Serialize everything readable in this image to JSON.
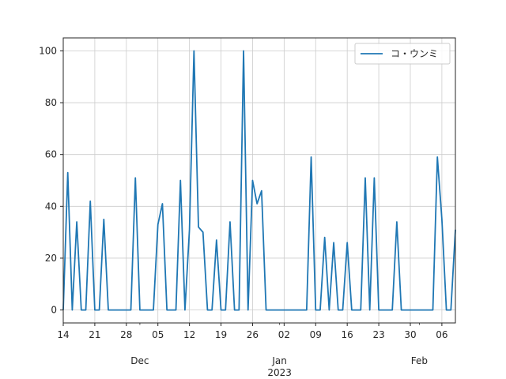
{
  "chart_data": {
    "type": "line",
    "title": "",
    "xlabel": "",
    "ylabel": "",
    "x_start": "2022-11-14",
    "x_end": "2023-02-09",
    "ylim": [
      -5,
      105
    ],
    "y_ticks": [
      0,
      20,
      40,
      60,
      80,
      100
    ],
    "grid": true,
    "legend_position": "top-right",
    "x_day_ticks": [
      {
        "date": "2022-11-14",
        "label": "14"
      },
      {
        "date": "2022-11-21",
        "label": "21"
      },
      {
        "date": "2022-11-28",
        "label": "28"
      },
      {
        "date": "2022-12-05",
        "label": "05"
      },
      {
        "date": "2022-12-12",
        "label": "12"
      },
      {
        "date": "2022-12-19",
        "label": "19"
      },
      {
        "date": "2022-12-26",
        "label": "26"
      },
      {
        "date": "2023-01-02",
        "label": "02"
      },
      {
        "date": "2023-01-09",
        "label": "09"
      },
      {
        "date": "2023-01-16",
        "label": "16"
      },
      {
        "date": "2023-01-23",
        "label": "23"
      },
      {
        "date": "2023-01-30",
        "label": "30"
      },
      {
        "date": "2023-02-06",
        "label": "06"
      }
    ],
    "x_month_ticks": [
      {
        "date": "2022-12-01",
        "label": "Dec"
      },
      {
        "date": "2023-01-01",
        "label": "Jan\n2023"
      },
      {
        "date": "2023-02-01",
        "label": "Feb"
      }
    ],
    "series": [
      {
        "name": "コ・ウンミ",
        "color": "#1f77b4",
        "x": [
          "2022-11-14",
          "2022-11-15",
          "2022-11-16",
          "2022-11-17",
          "2022-11-18",
          "2022-11-19",
          "2022-11-20",
          "2022-11-21",
          "2022-11-22",
          "2022-11-23",
          "2022-11-24",
          "2022-11-25",
          "2022-11-26",
          "2022-11-27",
          "2022-11-28",
          "2022-11-29",
          "2022-11-30",
          "2022-12-01",
          "2022-12-02",
          "2022-12-03",
          "2022-12-04",
          "2022-12-05",
          "2022-12-06",
          "2022-12-07",
          "2022-12-08",
          "2022-12-09",
          "2022-12-10",
          "2022-12-11",
          "2022-12-12",
          "2022-12-13",
          "2022-12-14",
          "2022-12-15",
          "2022-12-16",
          "2022-12-17",
          "2022-12-18",
          "2022-12-19",
          "2022-12-20",
          "2022-12-21",
          "2022-12-22",
          "2022-12-23",
          "2022-12-24",
          "2022-12-25",
          "2022-12-26",
          "2022-12-27",
          "2022-12-28",
          "2022-12-29",
          "2022-12-30",
          "2022-12-31",
          "2023-01-01",
          "2023-01-02",
          "2023-01-03",
          "2023-01-04",
          "2023-01-05",
          "2023-01-06",
          "2023-01-07",
          "2023-01-08",
          "2023-01-09",
          "2023-01-10",
          "2023-01-11",
          "2023-01-12",
          "2023-01-13",
          "2023-01-14",
          "2023-01-15",
          "2023-01-16",
          "2023-01-17",
          "2023-01-18",
          "2023-01-19",
          "2023-01-20",
          "2023-01-21",
          "2023-01-22",
          "2023-01-23",
          "2023-01-24",
          "2023-01-25",
          "2023-01-26",
          "2023-01-27",
          "2023-01-28",
          "2023-01-29",
          "2023-01-30",
          "2023-01-31",
          "2023-02-01",
          "2023-02-02",
          "2023-02-03",
          "2023-02-04",
          "2023-02-05",
          "2023-02-06",
          "2023-02-07",
          "2023-02-08",
          "2023-02-09"
        ],
        "y": [
          0,
          53,
          0,
          34,
          0,
          0,
          42,
          0,
          0,
          35,
          0,
          0,
          0,
          0,
          0,
          0,
          51,
          0,
          0,
          0,
          0,
          33,
          41,
          0,
          0,
          0,
          50,
          0,
          31,
          100,
          32,
          30,
          0,
          0,
          27,
          0,
          0,
          34,
          0,
          0,
          100,
          0,
          50,
          41,
          46,
          0,
          0,
          0,
          0,
          0,
          0,
          0,
          0,
          0,
          0,
          59,
          0,
          0,
          28,
          0,
          26,
          0,
          0,
          26,
          0,
          0,
          0,
          51,
          0,
          51,
          0,
          0,
          0,
          0,
          34,
          0,
          0,
          0,
          0,
          0,
          0,
          0,
          0,
          59,
          35,
          0,
          0,
          31
        ]
      }
    ]
  }
}
